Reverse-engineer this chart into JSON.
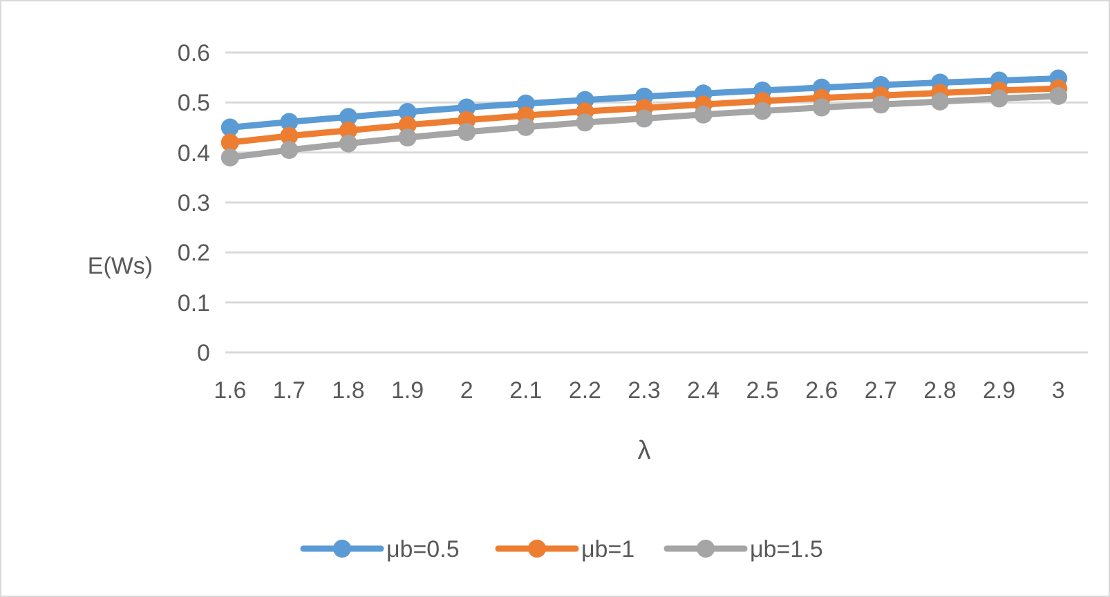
{
  "chart_data": {
    "type": "line",
    "xlabel": "λ",
    "ylabel": "E(Ws)",
    "categories": [
      "1.6",
      "1.7",
      "1.8",
      "1.9",
      "2",
      "2.1",
      "2.2",
      "2.3",
      "2.4",
      "2.5",
      "2.6",
      "2.7",
      "2.8",
      "2.9",
      "3"
    ],
    "series": [
      {
        "name": "μb=0.5",
        "color": "#5b9bd5",
        "values": [
          0.45,
          0.461,
          0.471,
          0.481,
          0.49,
          0.498,
          0.505,
          0.512,
          0.518,
          0.524,
          0.53,
          0.535,
          0.54,
          0.544,
          0.548
        ]
      },
      {
        "name": "μb=1",
        "color": "#ed7d31",
        "values": [
          0.42,
          0.433,
          0.444,
          0.455,
          0.465,
          0.474,
          0.482,
          0.489,
          0.496,
          0.503,
          0.509,
          0.514,
          0.519,
          0.524,
          0.528
        ]
      },
      {
        "name": "μb=1.5",
        "color": "#a5a5a5",
        "values": [
          0.39,
          0.405,
          0.418,
          0.43,
          0.441,
          0.451,
          0.46,
          0.468,
          0.476,
          0.483,
          0.49,
          0.496,
          0.502,
          0.508,
          0.513
        ]
      }
    ],
    "ylim": [
      0,
      0.6
    ],
    "yticks": [
      0,
      0.1,
      0.2,
      0.3,
      0.4,
      0.5,
      0.6
    ],
    "grid": "y",
    "legend": "bottom",
    "marker": "circle",
    "line_style": "solid"
  }
}
